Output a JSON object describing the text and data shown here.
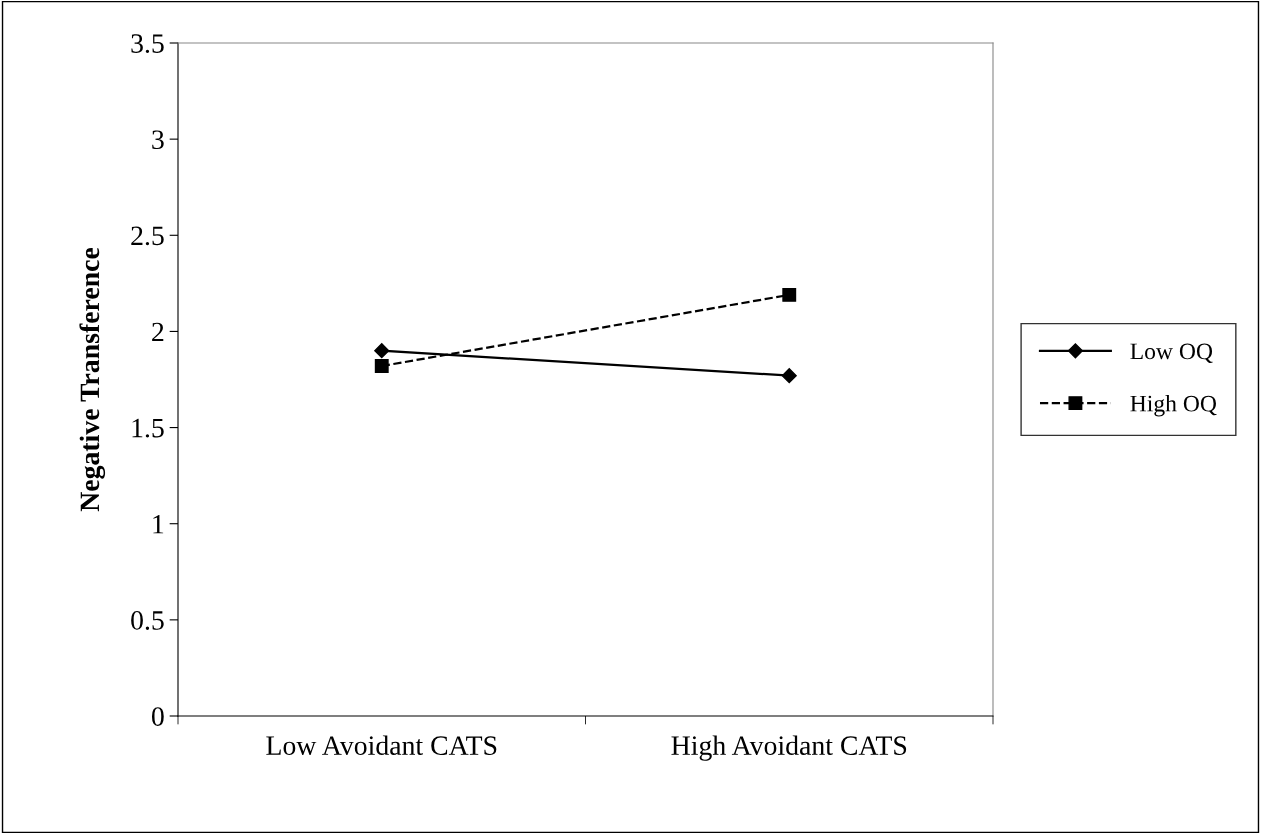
{
  "chart_data": {
    "type": "line",
    "ylabel": "Negative Transference",
    "categories": [
      "Low Avoidant CATS",
      "High Avoidant CATS"
    ],
    "series": [
      {
        "name": "Low OQ",
        "color": "#000000",
        "values": [
          1.9,
          1.77
        ],
        "marker": "diamond",
        "line_style": "solid"
      },
      {
        "name": "High OQ",
        "color": "#000000",
        "values": [
          1.82,
          2.19
        ],
        "marker": "square",
        "line_style": "dashed"
      }
    ],
    "ylim": [
      0,
      3.5
    ],
    "yticks": [
      0,
      0.5,
      1,
      1.5,
      2,
      2.5,
      3,
      3.5
    ],
    "grid": false,
    "legend": "right"
  }
}
